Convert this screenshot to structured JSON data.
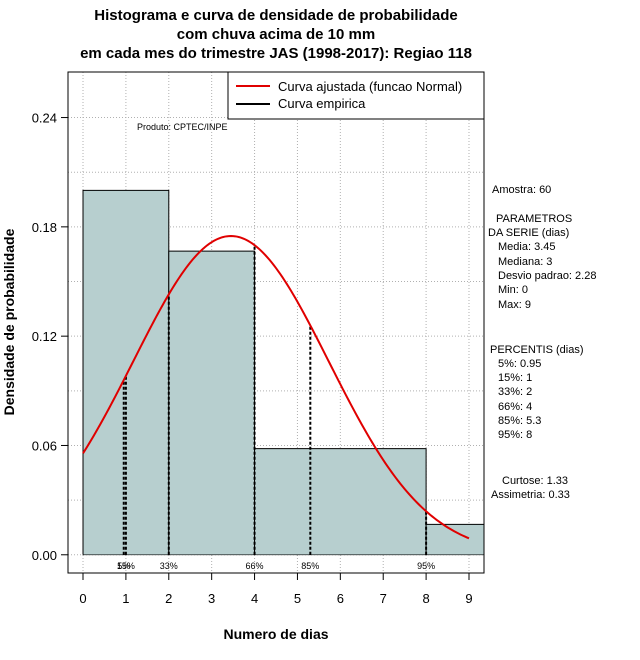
{
  "chart_data": {
    "type": "histogram",
    "title_lines": [
      "Histograma e curva de densidade de probabilidade",
      "com chuva acima de 10 mm",
      "em cada mes do trimestre JAS (1998-2017): Regiao 118"
    ],
    "xlabel": "Numero de dias",
    "ylabel": "Densidade de probabilidade",
    "xlim": [
      -0.35,
      9.35
    ],
    "ylim": [
      -0.01,
      0.265
    ],
    "x_ticks": [
      "0",
      "1",
      "2",
      "3",
      "4",
      "5",
      "6",
      "7",
      "8",
      "9"
    ],
    "y_ticks": [
      "0.00",
      "0.06",
      "0.12",
      "0.18",
      "0.24"
    ],
    "bins": [
      {
        "x0": 0,
        "x1": 2,
        "density": 0.2
      },
      {
        "x0": 2,
        "x1": 4,
        "density": 0.1667
      },
      {
        "x0": 4,
        "x1": 8,
        "density": 0.0583
      },
      {
        "x0": 8,
        "x1": 9.35,
        "density": 0.0167
      }
    ],
    "colors": {
      "bar_fill": "#b7cfcf",
      "curve": "#e00000",
      "grid": "#b0b0b0"
    },
    "fitted_curve": {
      "type": "normal",
      "mean": 3.45,
      "sd": 2.28,
      "x_from": 0,
      "x_to": 9
    },
    "percentile_markers": [
      {
        "label": "5%",
        "x": 0.95
      },
      {
        "label": "15%",
        "x": 1
      },
      {
        "label": "33%",
        "x": 2
      },
      {
        "label": "66%",
        "x": 4
      },
      {
        "label": "85%",
        "x": 5.3
      },
      {
        "label": "95%",
        "x": 8
      }
    ],
    "legend": {
      "position": "top-right",
      "items": [
        {
          "label": "Curva ajustada (funcao Normal)",
          "color": "#e00000"
        },
        {
          "label": "Curva empirica",
          "color": "#000000"
        }
      ]
    },
    "annotations": {
      "product": "Produto: CPTEC/INPE",
      "sample": "Amostra: 60",
      "params_header": [
        "PARAMETROS",
        "DA SERIE (dias)"
      ],
      "params": [
        "Media: 3.45",
        "Mediana: 3",
        "Desvio padrao: 2.28",
        "Min: 0",
        "Max: 9"
      ],
      "percentiles_header": "PERCENTIS (dias)",
      "percentiles": [
        "5%: 0.95",
        "15%: 1",
        "33%: 2",
        "66%: 4",
        "85%: 5.3",
        "95%: 8"
      ],
      "shape": [
        "Curtose: 1.33",
        "Assimetria: 0.33"
      ]
    }
  }
}
